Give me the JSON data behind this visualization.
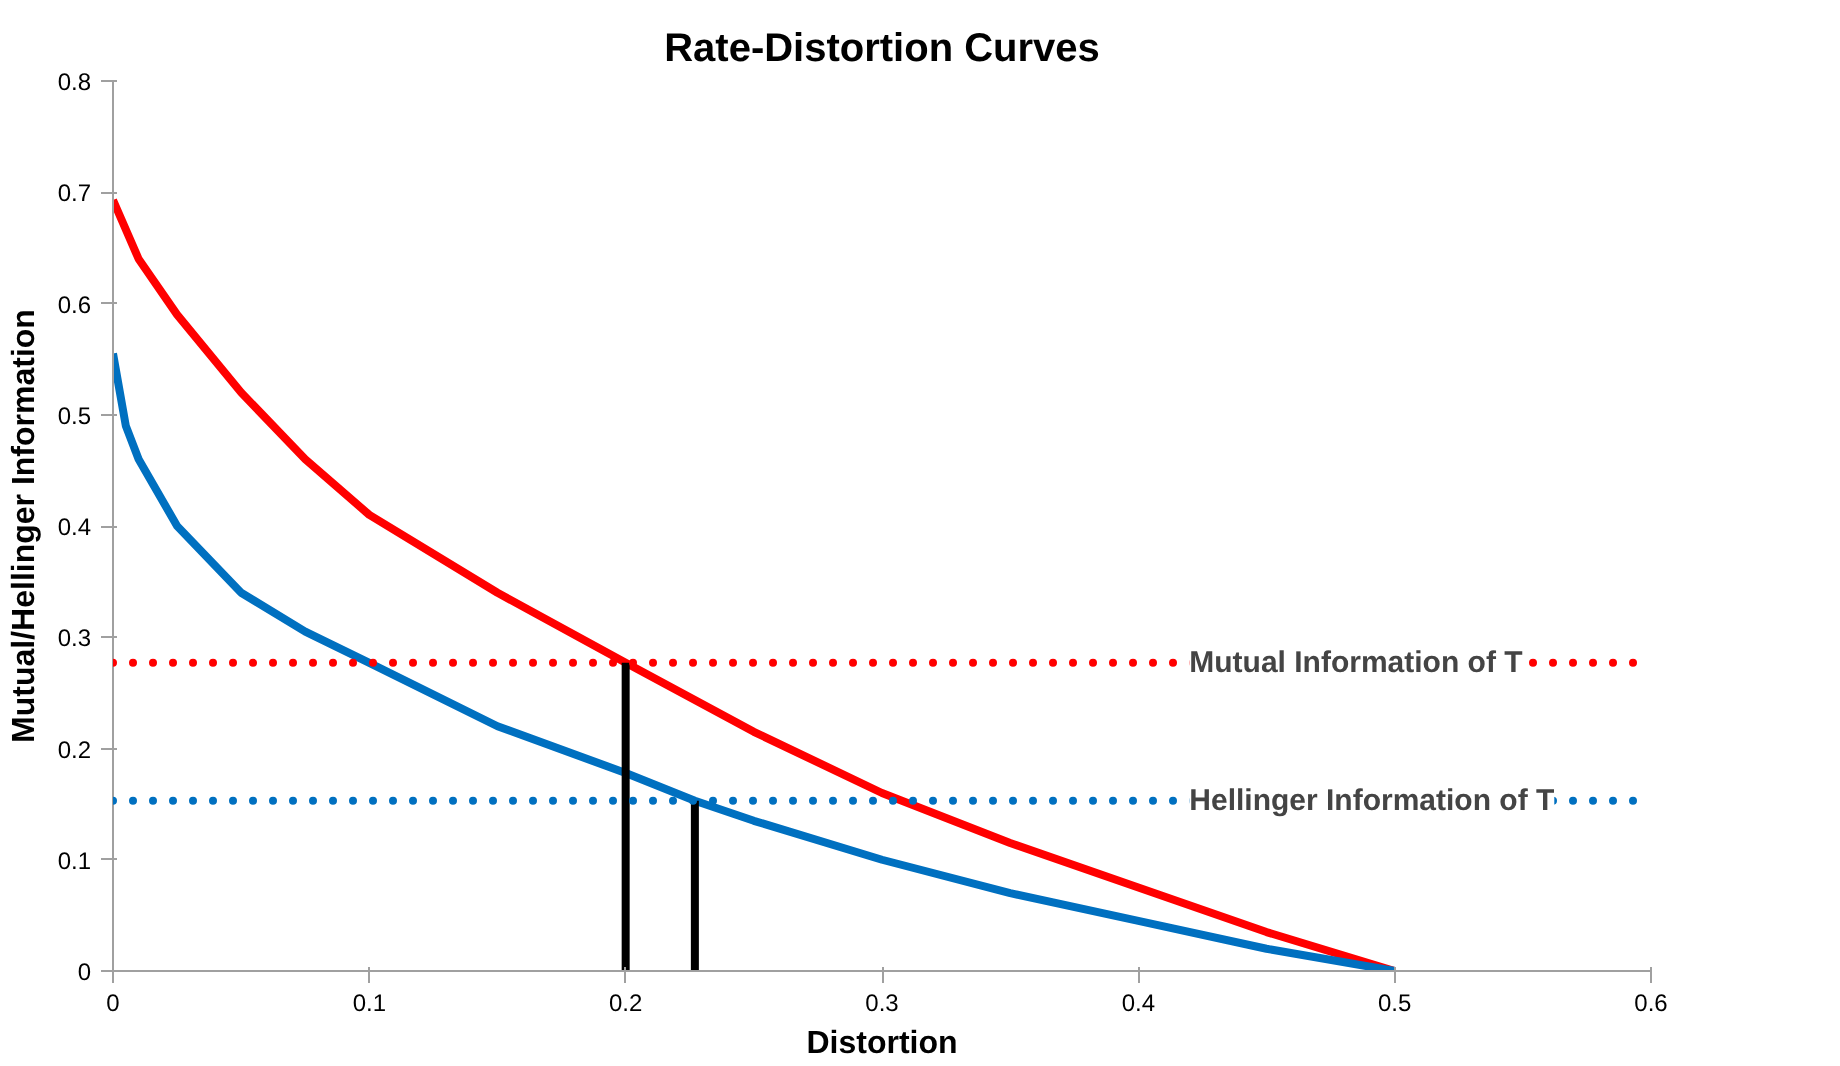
{
  "chart_data": {
    "type": "line",
    "title": "Rate-Distortion Curves",
    "xlabel": "Distortion",
    "ylabel": "Mutual/Hellinger Information",
    "xlim": [
      0,
      0.6
    ],
    "ylim": [
      0,
      0.8
    ],
    "xticks": [
      0,
      0.1,
      0.2,
      0.3,
      0.4,
      0.5,
      0.6
    ],
    "yticks": [
      0,
      0.1,
      0.2,
      0.3,
      0.4,
      0.5,
      0.6,
      0.7,
      0.8
    ],
    "grid": false,
    "marker": "none",
    "line_style": "solid",
    "series": [
      {
        "color": "#ff0000",
        "x": [
          0,
          0.01,
          0.025,
          0.05,
          0.075,
          0.1,
          0.15,
          0.2,
          0.25,
          0.3,
          0.35,
          0.4,
          0.45,
          0.5
        ],
        "values": [
          0.693,
          0.64,
          0.59,
          0.52,
          0.46,
          0.41,
          0.34,
          0.277,
          0.215,
          0.16,
          0.115,
          0.075,
          0.035,
          0
        ]
      },
      {
        "color": "#0070c0",
        "x": [
          0,
          0.005,
          0.01,
          0.025,
          0.05,
          0.075,
          0.1,
          0.15,
          0.2,
          0.227,
          0.25,
          0.3,
          0.35,
          0.4,
          0.45,
          0.5
        ],
        "values": [
          0.555,
          0.49,
          0.46,
          0.4,
          0.34,
          0.305,
          0.277,
          0.22,
          0.178,
          0.153,
          0.135,
          0.1,
          0.07,
          0.045,
          0.02,
          0
        ]
      },
      {
        "color": "#000000",
        "x": [
          0.2,
          0.2
        ],
        "values": [
          0,
          0.277
        ]
      },
      {
        "color": "#000000",
        "x": [
          0.227,
          0.227
        ],
        "values": [
          0,
          0.153
        ]
      }
    ],
    "ref_lines": [
      {
        "axis": "y",
        "value": 0.277,
        "label": "Mutual Information of T",
        "color": "#ff0000",
        "line_style": "dotted"
      },
      {
        "axis": "y",
        "value": 0.153,
        "label": "Hellinger Information of T",
        "color": "#0070c0",
        "line_style": "dotted"
      }
    ]
  }
}
